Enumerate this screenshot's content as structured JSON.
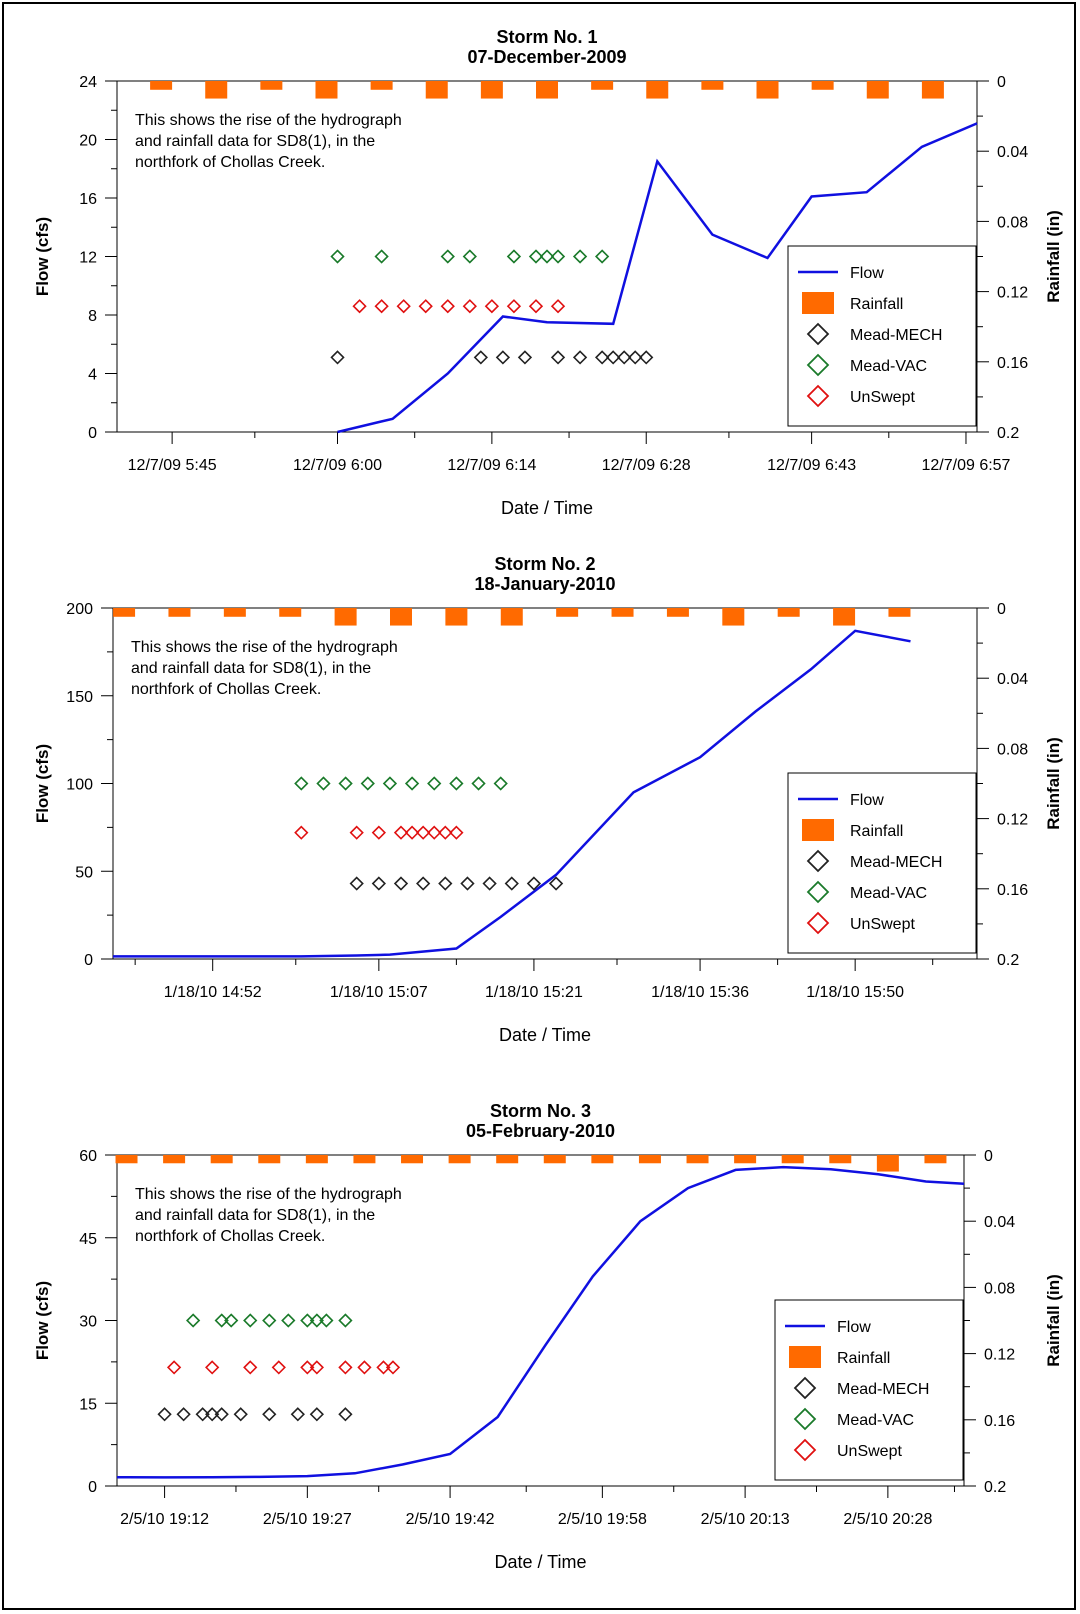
{
  "colors": {
    "flow": "#1010e0",
    "rainfall": "#ff6a00",
    "mead_mech": "#222222",
    "mead_vac": "#1a7a2a",
    "unswept": "#e01010"
  },
  "chart_data": [
    {
      "type": "line",
      "title": "Storm No. 1",
      "subtitle": "07-December-2009",
      "xlabel": "Date / Time",
      "ylabel": "Flow (cfs)",
      "y2label": "Rainfall (in)",
      "x_range_minutes": [
        -20,
        58
      ],
      "x_ticks": [
        {
          "label": "12/7/09 5:45",
          "min": -15
        },
        {
          "label": "12/7/09 6:00",
          "min": 0
        },
        {
          "label": "12/7/09 6:14",
          "min": 14
        },
        {
          "label": "12/7/09 6:28",
          "min": 28
        },
        {
          "label": "12/7/09 6:43",
          "min": 43
        },
        {
          "label": "12/7/09 6:57",
          "min": 57
        }
      ],
      "x_minor_ticks": [
        -7.5,
        7,
        21,
        35.5,
        50
      ],
      "ylim": [
        0,
        24
      ],
      "y_ticks": [
        0,
        4,
        8,
        12,
        16,
        20,
        24
      ],
      "y2lim": [
        0,
        0.2
      ],
      "y2_ticks": [
        0,
        0.04,
        0.08,
        0.12,
        0.16,
        0.2
      ],
      "annotation": [
        "This shows the rise of the hydrograph",
        "and rainfall data for SD8(1), in the",
        "northfork of Chollas Creek."
      ],
      "legend": [
        "Flow",
        "Rainfall",
        "Mead-MECH",
        "Mead-VAC",
        "UnSwept"
      ],
      "legend_position": "right",
      "flow": {
        "x": [
          0,
          5,
          10,
          15,
          19,
          25,
          29,
          34,
          39,
          43,
          48,
          53,
          58
        ],
        "y": [
          0,
          0.9,
          4,
          7.9,
          7.5,
          7.4,
          18.5,
          13.5,
          11.9,
          16.1,
          16.4,
          19.5,
          21.1
        ]
      },
      "rainfall": {
        "x": [
          -16,
          -11,
          -6,
          -1,
          4,
          9,
          14,
          19,
          24,
          29,
          34,
          39,
          44,
          49,
          54
        ],
        "y": [
          0.005,
          0.01,
          0.005,
          0.01,
          0.005,
          0.01,
          0.01,
          0.01,
          0.005,
          0.01,
          0.005,
          0.01,
          0.005,
          0.01,
          0.01
        ]
      },
      "mead_mech": {
        "x": [
          0,
          13,
          15,
          17,
          20,
          22,
          24,
          25,
          26,
          27,
          28
        ],
        "y": [
          5.1,
          5.1,
          5.1,
          5.1,
          5.1,
          5.1,
          5.1,
          5.1,
          5.1,
          5.1,
          5.1
        ]
      },
      "mead_vac": {
        "x": [
          0,
          4,
          10,
          12,
          16,
          18,
          19,
          20,
          22,
          24
        ],
        "y": [
          12,
          12,
          12,
          12,
          12,
          12,
          12,
          12,
          12,
          12
        ]
      },
      "unswept": {
        "x": [
          2,
          4,
          6,
          8,
          10,
          12,
          14,
          16,
          18,
          20
        ],
        "y": [
          8.6,
          8.6,
          8.6,
          8.6,
          8.6,
          8.6,
          8.6,
          8.6,
          8.6,
          8.6
        ]
      }
    },
    {
      "type": "line",
      "title": "Storm No. 2",
      "subtitle": "18-January-2010",
      "xlabel": "Date / Time",
      "ylabel": "Flow (cfs)",
      "y2label": "Rainfall (in)",
      "x_range_minutes": [
        883,
        961
      ],
      "x_ticks": [
        {
          "label": "1/18/10 14:52",
          "min": 892
        },
        {
          "label": "1/18/10 15:07",
          "min": 907
        },
        {
          "label": "1/18/10 15:21",
          "min": 921
        },
        {
          "label": "1/18/10 15:36",
          "min": 936
        },
        {
          "label": "1/18/10 15:50",
          "min": 950
        }
      ],
      "x_minor_ticks": [
        885,
        899.5,
        914,
        928.5,
        943,
        957
      ],
      "ylim": [
        0,
        200
      ],
      "y_ticks": [
        0,
        50,
        100,
        150,
        200
      ],
      "y2lim": [
        0,
        0.2
      ],
      "y2_ticks": [
        0,
        0.04,
        0.08,
        0.12,
        0.16,
        0.2
      ],
      "annotation": [
        "This shows the rise of the hydrograph",
        "and rainfall data for SD8(1), in the",
        "northfork of Chollas Creek."
      ],
      "legend": [
        "Flow",
        "Rainfall",
        "Mead-MECH",
        "Mead-VAC",
        "UnSwept"
      ],
      "legend_position": "right",
      "flow": {
        "x": [
          883,
          890,
          895,
          900,
          905,
          908,
          914,
          918,
          923,
          930,
          936,
          941,
          946,
          950,
          955
        ],
        "y": [
          1.5,
          1.5,
          1.5,
          1.5,
          2,
          2.5,
          6,
          24,
          48,
          95,
          115,
          141,
          165,
          187,
          181
        ]
      },
      "rainfall": {
        "x": [
          884,
          889,
          894,
          899,
          904,
          909,
          914,
          919,
          924,
          929,
          934,
          939,
          944,
          949,
          954
        ],
        "y": [
          0.005,
          0.005,
          0.005,
          0.005,
          0.01,
          0.01,
          0.01,
          0.01,
          0.005,
          0.005,
          0.005,
          0.01,
          0.005,
          0.01,
          0.005
        ]
      },
      "mead_mech": {
        "x": [
          905,
          907,
          909,
          911,
          913,
          915,
          917,
          919,
          921,
          923
        ],
        "y": [
          43,
          43,
          43,
          43,
          43,
          43,
          43,
          43,
          43,
          43
        ]
      },
      "mead_vac": {
        "x": [
          900,
          902,
          904,
          906,
          908,
          910,
          912,
          914,
          916,
          918
        ],
        "y": [
          100,
          100,
          100,
          100,
          100,
          100,
          100,
          100,
          100,
          100
        ]
      },
      "unswept": {
        "x": [
          900,
          905,
          907,
          909,
          910,
          911,
          912,
          913,
          914
        ],
        "y": [
          72,
          72,
          72,
          72,
          72,
          72,
          72,
          72,
          72
        ]
      }
    },
    {
      "type": "line",
      "title": "Storm No. 3",
      "subtitle": "05-February-2010",
      "xlabel": "Date / Time",
      "ylabel": "Flow (cfs)",
      "y2label": "Rainfall (in)",
      "x_range_minutes": [
        1147,
        1236
      ],
      "x_ticks": [
        {
          "label": "2/5/10 19:12",
          "min": 1152
        },
        {
          "label": "2/5/10 19:27",
          "min": 1167
        },
        {
          "label": "2/5/10 19:42",
          "min": 1182
        },
        {
          "label": "2/5/10 19:58",
          "min": 1198
        },
        {
          "label": "2/5/10 20:13",
          "min": 1213
        },
        {
          "label": "2/5/10 20:28",
          "min": 1228
        }
      ],
      "x_minor_ticks": [
        1159.5,
        1174.5,
        1190,
        1205.5,
        1220.5,
        1235
      ],
      "ylim": [
        0,
        60
      ],
      "y_ticks": [
        0,
        15,
        30,
        45,
        60
      ],
      "y2lim": [
        0,
        0.2
      ],
      "y2_ticks": [
        0,
        0.04,
        0.08,
        0.12,
        0.16,
        0.2
      ],
      "annotation": [
        "This shows the rise of the hydrograph",
        "and rainfall data for SD8(1), in the",
        "northfork of Chollas Creek."
      ],
      "legend": [
        "Flow",
        "Rainfall",
        "Mead-MECH",
        "Mead-VAC",
        "UnSwept"
      ],
      "legend_position": "right",
      "flow": {
        "x": [
          1147,
          1152,
          1157,
          1162,
          1167,
          1172,
          1177,
          1182,
          1187,
          1192,
          1197,
          1202,
          1207,
          1212,
          1217,
          1222,
          1227,
          1232,
          1236
        ],
        "y": [
          1.6,
          1.55,
          1.6,
          1.65,
          1.8,
          2.3,
          3.9,
          5.8,
          12.5,
          25.5,
          38,
          48,
          54,
          57.3,
          57.8,
          57.4,
          56.5,
          55.2,
          54.8
        ]
      },
      "rainfall": {
        "x": [
          1148,
          1153,
          1158,
          1163,
          1168,
          1173,
          1178,
          1183,
          1188,
          1193,
          1198,
          1203,
          1208,
          1213,
          1218,
          1223,
          1228,
          1233
        ],
        "y": [
          0.005,
          0.005,
          0.005,
          0.005,
          0.005,
          0.005,
          0.005,
          0.005,
          0.005,
          0.005,
          0.005,
          0.005,
          0.005,
          0.005,
          0.005,
          0.005,
          0.01,
          0.005
        ]
      },
      "mead_mech": {
        "x": [
          1152,
          1154,
          1156,
          1157,
          1158,
          1160,
          1163,
          1166,
          1168,
          1171
        ],
        "y": [
          13,
          13,
          13,
          13,
          13,
          13,
          13,
          13,
          13,
          13
        ]
      },
      "mead_vac": {
        "x": [
          1155,
          1158,
          1159,
          1161,
          1163,
          1165,
          1167,
          1168,
          1169,
          1171
        ],
        "y": [
          30,
          30,
          30,
          30,
          30,
          30,
          30,
          30,
          30,
          30
        ]
      },
      "unswept": {
        "x": [
          1153,
          1157,
          1161,
          1164,
          1167,
          1168,
          1171,
          1173,
          1175,
          1176
        ],
        "y": [
          21.5,
          21.5,
          21.5,
          21.5,
          21.5,
          21.5,
          21.5,
          21.5,
          21.5,
          21.5
        ]
      }
    }
  ]
}
